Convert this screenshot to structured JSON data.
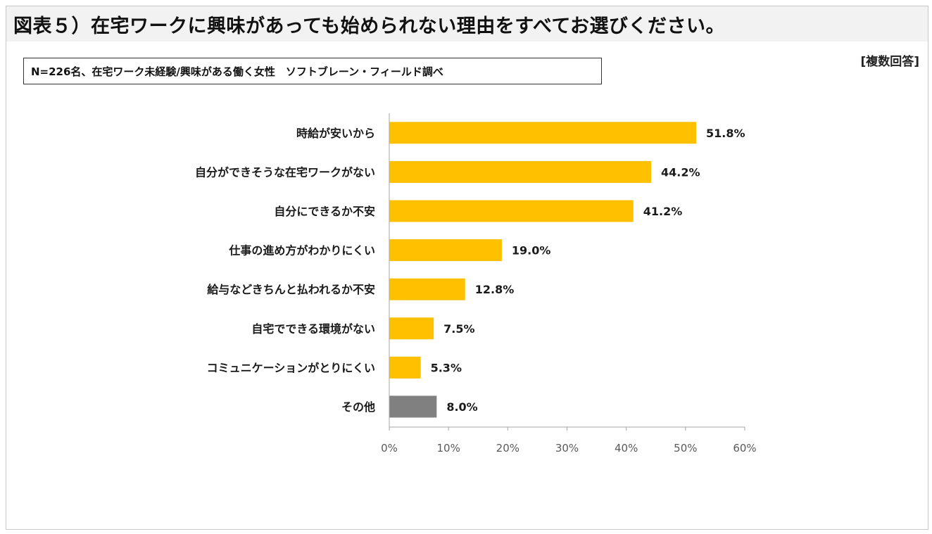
{
  "header": {
    "title": "図表５）在宅ワークに興味があっても始められない理由をすべてお選びください。"
  },
  "note": "N=226名、在宅ワーク未経験/興味がある働く女性　ソフトブレーン・フィールド調べ",
  "answer_type": "[複数回答]",
  "colors": {
    "bar": "#ffc000",
    "other_bar": "#808080",
    "axis": "#a6a6a6"
  },
  "chart_data": {
    "type": "bar",
    "orientation": "horizontal",
    "categories": [
      "時給が安いから",
      "自分ができそうな在宅ワークがない",
      "自分にできるか不安",
      "仕事の進め方がわかりにくい",
      "給与などきちんと払われるか不安",
      "自宅でできる環境がない",
      "コミュニケーションがとりにくい",
      "その他"
    ],
    "values": [
      51.8,
      44.2,
      41.2,
      19.0,
      12.8,
      7.5,
      5.3,
      8.0
    ],
    "value_labels": [
      "51.8%",
      "44.2%",
      "41.2%",
      "19.0%",
      "12.8%",
      "7.5%",
      "5.3%",
      "8.0%"
    ],
    "xlim": [
      0,
      60
    ],
    "xticks": [
      "0%",
      "10%",
      "20%",
      "30%",
      "40%",
      "50%",
      "60%"
    ],
    "grid": false,
    "legend": "none"
  }
}
